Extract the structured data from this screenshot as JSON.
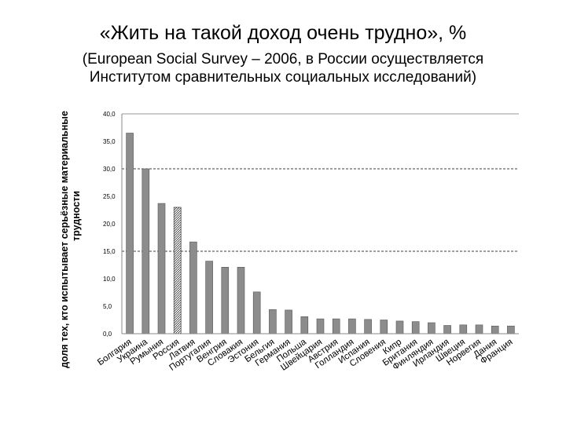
{
  "header": {
    "title": "«Жить на такой доход очень трудно», %",
    "subtitle_line1": "(European Social Survey – 2006, в России осуществляется",
    "subtitle_line2": "Институтом сравнительных социальных исследований)"
  },
  "chart_data": {
    "type": "bar",
    "title": "«Жить на такой доход очень трудно», %",
    "ylabel_line1": "доля тех, кто испытывает серьёзные материальные",
    "ylabel_line2": "трудности",
    "xlabel": "",
    "ylim": [
      0,
      40
    ],
    "yticks": [
      "0,0",
      "5,0",
      "10,0",
      "15,0",
      "20,0",
      "25,0",
      "30,0",
      "35,0",
      "40,0"
    ],
    "grid": "dashed at 15, 30; solid at 40",
    "categories": [
      "Болгария",
      "Украина",
      "Румыния",
      "Россия",
      "Латвия",
      "Португалия",
      "Венгрия",
      "Словакия",
      "Эстония",
      "Бельгия",
      "Германия",
      "Польша",
      "Швейцария",
      "Австрия",
      "Голландия",
      "Испания",
      "Словения",
      "Кипр",
      "Британия",
      "Финляндия",
      "Ирландия",
      "Швеция",
      "Норвегия",
      "Дания",
      "Франция"
    ],
    "values": [
      36.5,
      30.0,
      23.7,
      23.0,
      16.7,
      13.2,
      12.1,
      12.1,
      7.6,
      4.4,
      4.3,
      3.1,
      2.7,
      2.7,
      2.7,
      2.6,
      2.5,
      2.3,
      2.2,
      2.0,
      1.5,
      1.6,
      1.6,
      1.4,
      1.4
    ],
    "highlight": "Россия",
    "colors": {
      "bar": "#8c8c8c",
      "bar_highlight_pattern": "hatched",
      "axis": "#888888"
    }
  }
}
